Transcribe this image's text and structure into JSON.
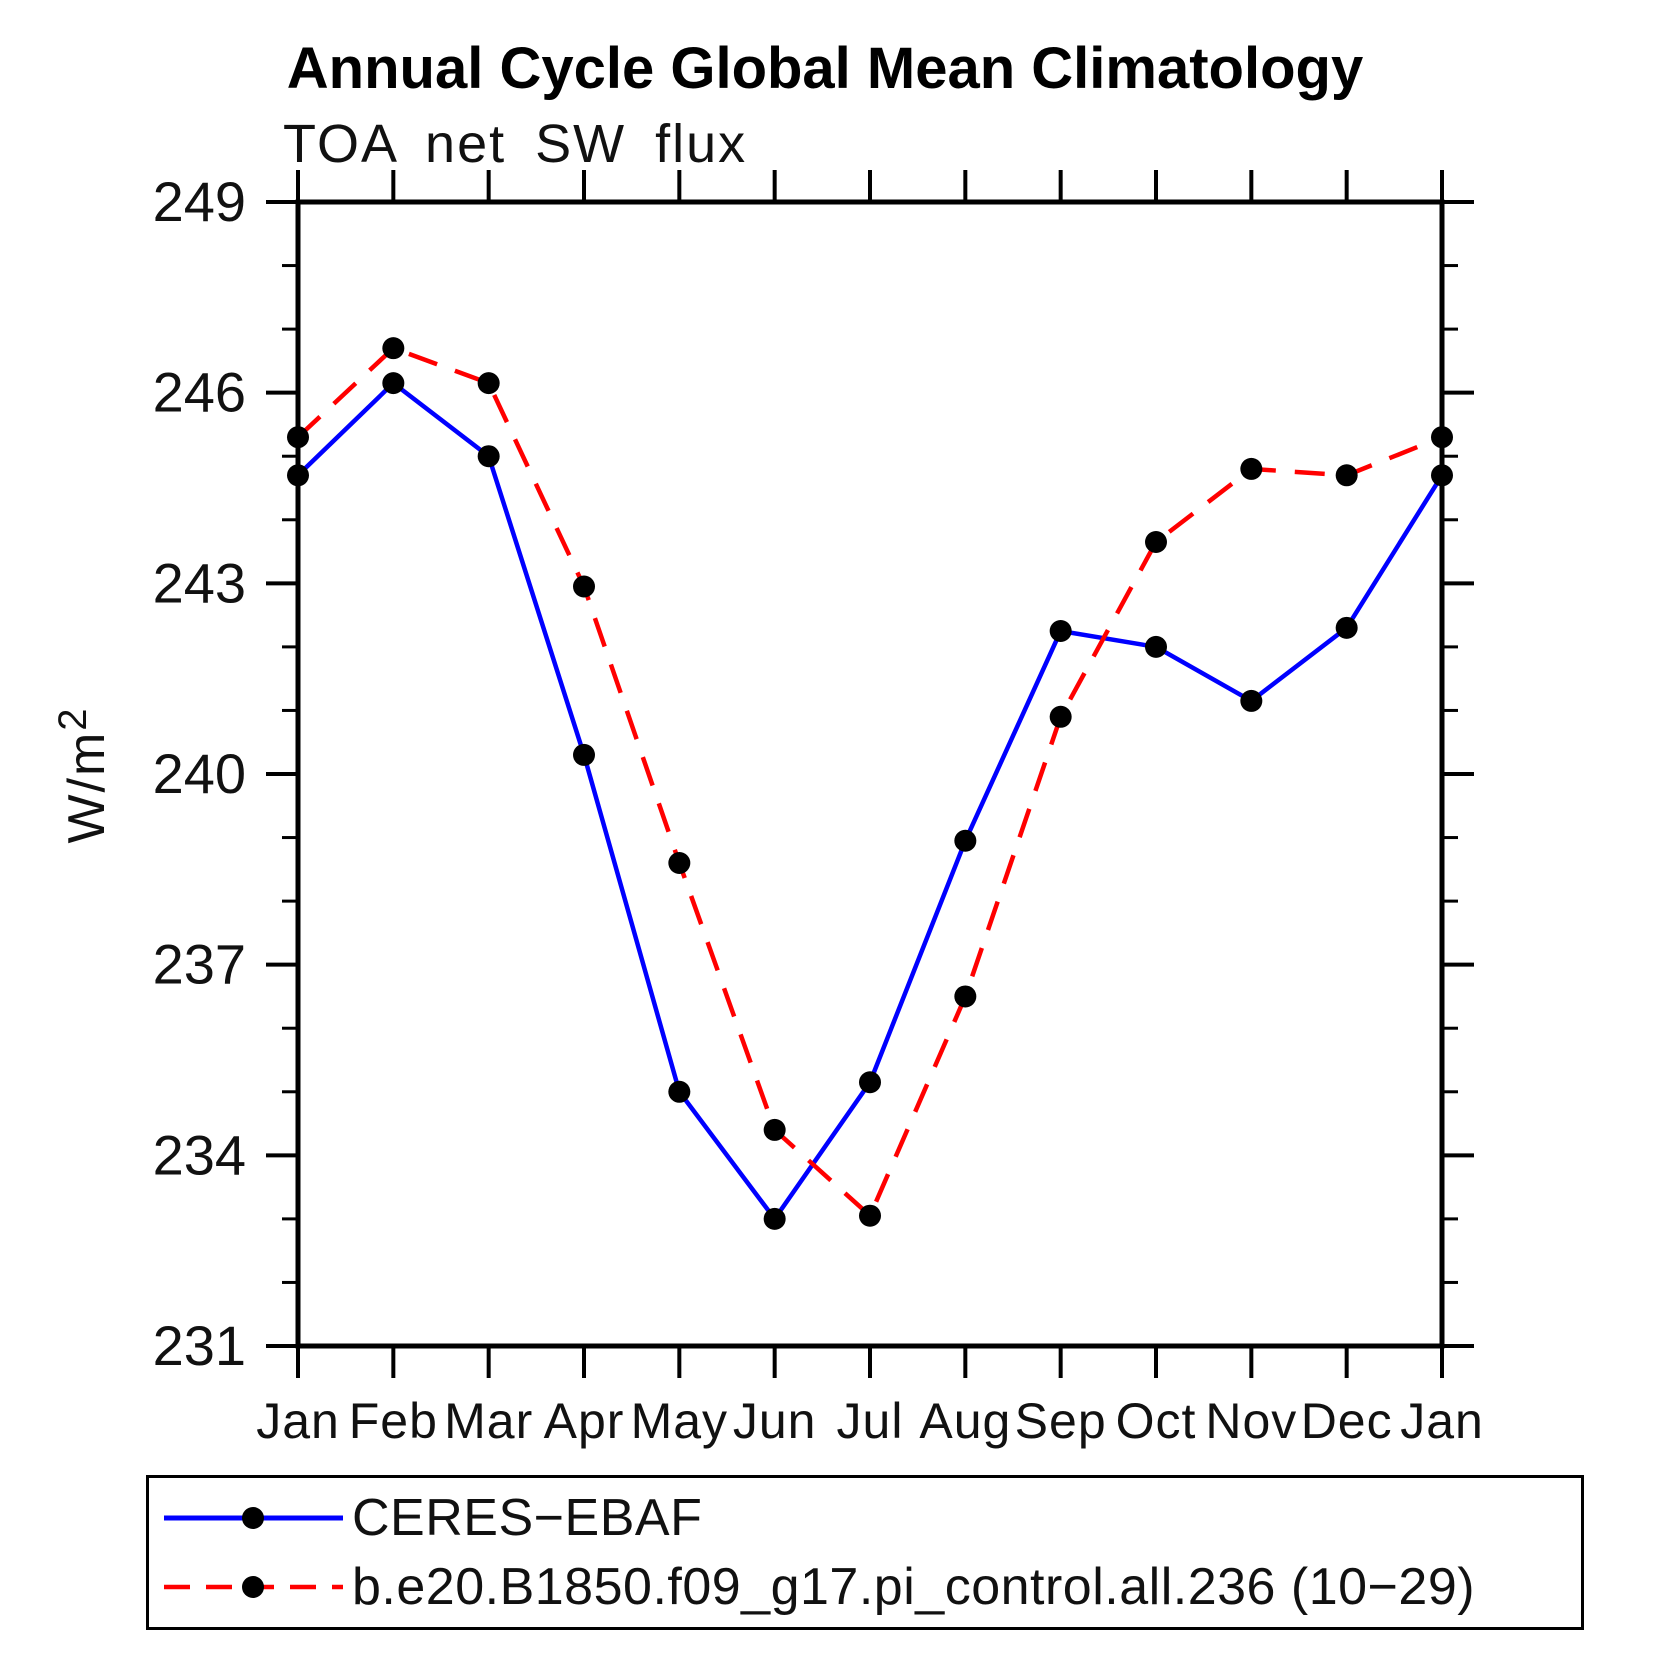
{
  "chart_data": {
    "type": "line",
    "title": "Annual Cycle Global Mean Climatology",
    "subtitle": "TOA net SW flux",
    "ylabel": "W/m²",
    "xlabel": "",
    "categories": [
      "Jan",
      "Feb",
      "Mar",
      "Apr",
      "May",
      "Jun",
      "Jul",
      "Aug",
      "Sep",
      "Oct",
      "Nov",
      "Dec",
      "Jan"
    ],
    "ylim": [
      231,
      249
    ],
    "ytick_major_step": 3,
    "ytick_minor_step": 1,
    "grid": false,
    "legend_position": "bottom",
    "marker": "filled-circle",
    "series": [
      {
        "name": "CERES−EBAF",
        "color": "#0000ff",
        "line_style": "solid",
        "marker_color": "#000000",
        "values": [
          244.7,
          246.15,
          245.0,
          240.3,
          235.0,
          233.0,
          235.15,
          238.95,
          242.25,
          242.0,
          241.15,
          242.3,
          244.7
        ]
      },
      {
        "name": "b.e20.B1850.f09_g17.pi_control.all.236 (10−29)",
        "color": "#ff0000",
        "line_style": "dashed",
        "marker_color": "#000000",
        "values": [
          245.3,
          246.7,
          246.15,
          242.95,
          238.6,
          234.4,
          233.05,
          236.5,
          240.9,
          243.65,
          244.8,
          244.7,
          245.3
        ]
      }
    ]
  },
  "colors": {
    "axis": "#000000",
    "background": "#ffffff"
  }
}
